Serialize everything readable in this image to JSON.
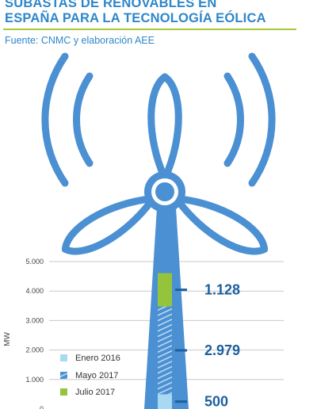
{
  "header": {
    "title_line1": "SUBASTAS DE RENOVABLES EN",
    "title_line2": "ESPAÑA PARA LA TECNOLOGÍA EÓLICA",
    "source": "Fuente: CNMC y elaboración AEE"
  },
  "colors": {
    "brand_blue": "#4a90d2",
    "dark_blue": "#1d5f9e",
    "enero_2016": "#a8d9f2",
    "mayo_2017": "#4a90d2",
    "julio_2017": "#94c43c"
  },
  "chart_data": {
    "type": "bar",
    "stacked": true,
    "ylabel": "MW",
    "ylim": [
      0,
      5000
    ],
    "yticks": [
      "0",
      "1.000",
      "2.000",
      "3.000",
      "4.000",
      "5.000"
    ],
    "ytick_values": [
      0,
      1000,
      2000,
      3000,
      4000,
      5000
    ],
    "grid": true,
    "legend_position": "bottom-left",
    "series": [
      {
        "name": "Enero 2016",
        "value": 500,
        "label": "500",
        "color": "#a8d9f2",
        "pattern": "solid"
      },
      {
        "name": "Mayo 2017",
        "value": 2979,
        "label": "2.979",
        "color": "#4a90d2",
        "pattern": "stripes"
      },
      {
        "name": "Julio 2017",
        "value": 1128,
        "label": "1.128",
        "color": "#94c43c",
        "pattern": "solid"
      }
    ]
  }
}
